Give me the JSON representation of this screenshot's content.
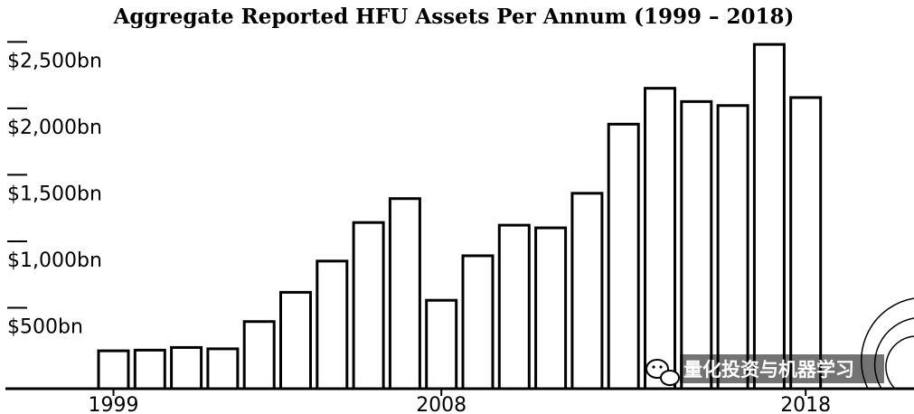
{
  "chart_data": {
    "type": "bar",
    "title": "Aggregate Reported HFU Assets Per Annum (1999 – 2018)",
    "xlabel": "",
    "ylabel": "",
    "categories": [
      "1999",
      "2000",
      "2001",
      "2002",
      "2003",
      "2004",
      "2005",
      "2006",
      "2007",
      "2008",
      "2009",
      "2010",
      "2011",
      "2012",
      "2013",
      "2014",
      "2015",
      "2016",
      "2017",
      "2018"
    ],
    "values": [
      285,
      290,
      310,
      300,
      505,
      725,
      960,
      1250,
      1430,
      665,
      1000,
      1230,
      1210,
      1470,
      1990,
      2260,
      2160,
      2130,
      2590,
      2190
    ],
    "ylim": [
      0,
      2550
    ],
    "yticks": [
      {
        "value": 500,
        "label": "$500bn"
      },
      {
        "value": 1000,
        "label": "$1,000bn"
      },
      {
        "value": 1500,
        "label": "$1,500bn"
      },
      {
        "value": 2000,
        "label": "$2,000bn"
      },
      {
        "value": 2500,
        "label": "$2,500bn"
      }
    ],
    "xticks_shown": [
      "1999",
      "2008",
      "2018"
    ],
    "grid": false,
    "colors": {
      "bar_fill": "#ffffff",
      "bar_stroke": "#000000",
      "axis": "#000000"
    }
  },
  "watermark": {
    "text": "量化投资与机器学习",
    "icon": "wechat-icon"
  }
}
